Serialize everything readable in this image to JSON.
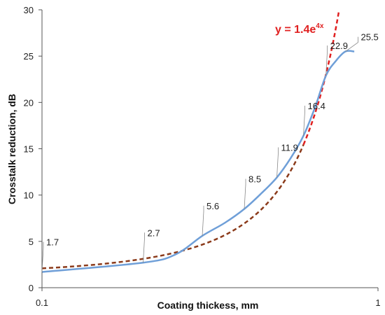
{
  "chart_data": {
    "type": "line",
    "xlabel": "Coating thickess, mm",
    "ylabel": "Crosstalk reduction, dB",
    "x_scale": "log",
    "xlim": [
      0.1,
      1
    ],
    "ylim": [
      0,
      30
    ],
    "x_ticks": [
      "0.1",
      "1"
    ],
    "y_ticks": [
      0,
      5,
      10,
      15,
      20,
      25,
      30
    ],
    "grid": false,
    "series": [
      {
        "kind": "measured",
        "color": "#6f9fd8",
        "style": "solid",
        "x": [
          0.1,
          0.2,
          0.25,
          0.3,
          0.35,
          0.4,
          0.45,
          0.5,
          0.55,
          0.6,
          0.65,
          0.7,
          0.75,
          0.8,
          0.85
        ],
        "y": [
          1.7,
          2.7,
          3.6,
          5.6,
          7.0,
          8.5,
          10.2,
          11.9,
          14.0,
          16.4,
          19.5,
          22.9,
          24.5,
          25.5,
          25.5
        ],
        "data_labels": [
          {
            "x": 0.1,
            "y": 1.7,
            "text": "1.7"
          },
          {
            "x": 0.2,
            "y": 2.7,
            "text": "2.7"
          },
          {
            "x": 0.3,
            "y": 5.6,
            "text": "5.6"
          },
          {
            "x": 0.4,
            "y": 8.5,
            "text": "8.5"
          },
          {
            "x": 0.5,
            "y": 11.9,
            "text": "11.9"
          },
          {
            "x": 0.6,
            "y": 16.4,
            "text": "16.4"
          },
          {
            "x": 0.7,
            "y": 22.9,
            "text": "22.9"
          },
          {
            "x": 0.8,
            "y": 25.5,
            "text": "25.5"
          }
        ]
      },
      {
        "kind": "fit",
        "color": "#e02020",
        "lower_color": "#8b3a1a",
        "style": "dashed",
        "equation_text": "y = 1.4e",
        "equation_exponent": "4x",
        "a": 1.4,
        "b": 4
      }
    ]
  }
}
